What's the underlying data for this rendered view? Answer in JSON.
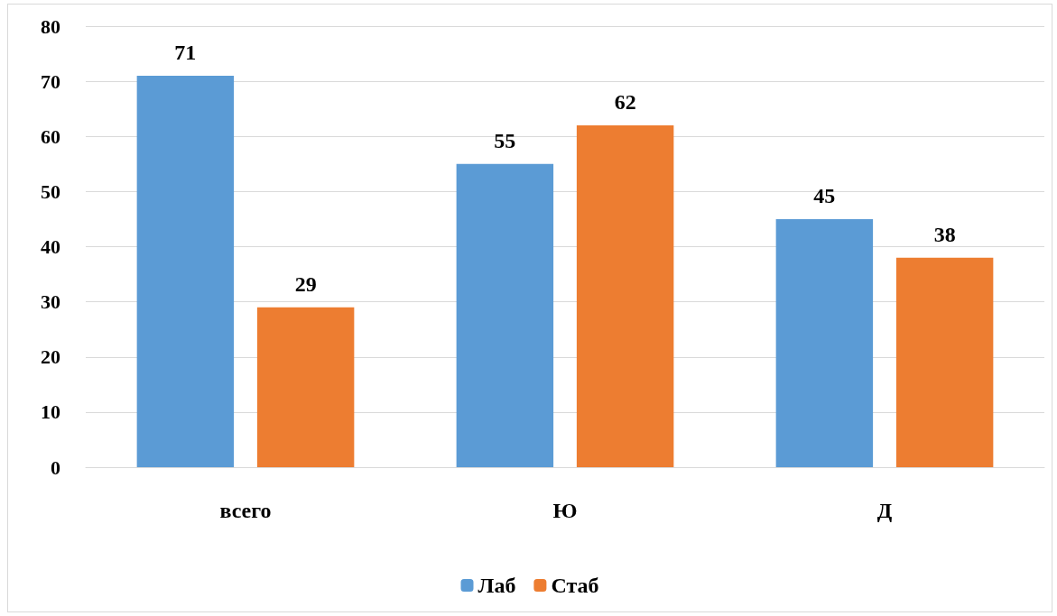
{
  "chart_data": {
    "type": "bar",
    "categories": [
      "всего",
      "Ю",
      "Д"
    ],
    "series": [
      {
        "name": "Лаб",
        "color": "#5b9bd5",
        "values": [
          71,
          55,
          45
        ]
      },
      {
        "name": "Стаб",
        "color": "#ed7d31",
        "values": [
          29,
          62,
          38
        ]
      }
    ],
    "ylim": [
      0,
      80
    ],
    "yticks": [
      0,
      10,
      20,
      30,
      40,
      50,
      60,
      70,
      80
    ],
    "grid": "y",
    "legend": "bottom",
    "data_labels": true
  }
}
